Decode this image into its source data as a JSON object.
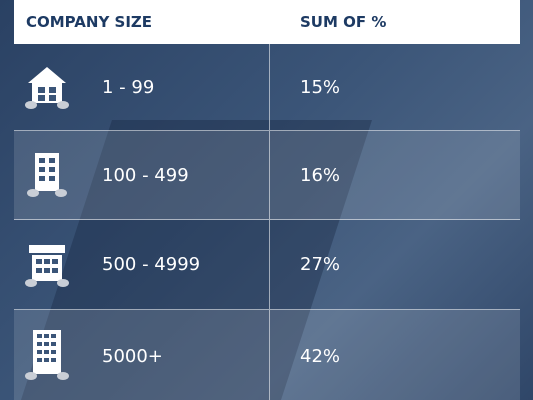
{
  "table": {
    "header": [
      "COMPANY SIZE",
      "SUM OF %"
    ],
    "rows": [
      [
        "1 - 99",
        "15%"
      ],
      [
        "100 - 499",
        "16%"
      ],
      [
        "500 - 4999",
        "27%"
      ],
      [
        "5000+",
        "42%"
      ]
    ]
  }
}
